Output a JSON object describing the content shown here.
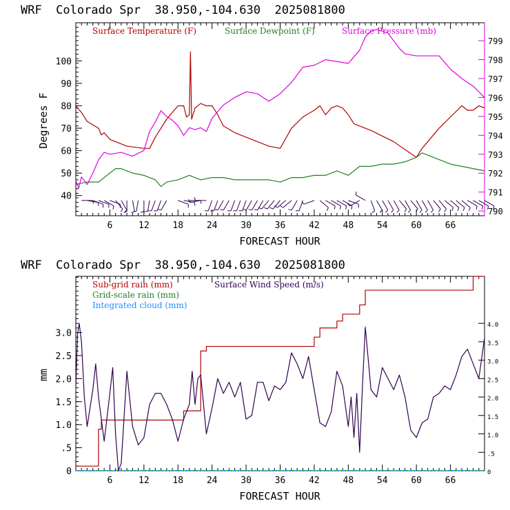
{
  "chart_data": [
    {
      "type": "line",
      "title": "WRF  Colorado Spr  38.950,-104.630  2025081800",
      "xlabel": "FORECAST HOUR",
      "ylabel": "Degrees F",
      "xlim": [
        0,
        72
      ],
      "ylim": [
        31,
        117
      ],
      "y2lim": [
        789.75,
        799.95
      ],
      "xticks": [
        6,
        12,
        18,
        24,
        30,
        36,
        42,
        48,
        54,
        60,
        66
      ],
      "yticks": [
        40,
        50,
        60,
        70,
        80,
        90,
        100
      ],
      "y2ticks": [
        790,
        791,
        792,
        793,
        794,
        795,
        796,
        797,
        798,
        799
      ],
      "series": [
        {
          "name": "Surface Temperature (F)",
          "color": "#b00000",
          "axis": "left",
          "x": [
            0,
            1,
            2,
            4,
            4.5,
            5,
            6,
            9,
            12,
            13,
            14,
            16,
            18,
            19,
            19.5,
            20,
            20.2,
            20.4,
            21,
            22,
            23,
            24,
            25,
            26,
            28,
            30,
            32,
            34,
            36,
            38,
            40,
            42,
            43,
            44,
            45,
            46,
            47,
            48,
            49,
            50,
            52,
            56,
            60,
            61,
            62,
            64,
            66,
            68,
            69,
            70,
            71,
            72
          ],
          "values": [
            80,
            77,
            73,
            70,
            67,
            68,
            65,
            62,
            61,
            61,
            66,
            74,
            80,
            80,
            75,
            76,
            104,
            74,
            79,
            81,
            80,
            80,
            76,
            71,
            68,
            66,
            64,
            62,
            61,
            70,
            75,
            78,
            80,
            76,
            79,
            80,
            79,
            76,
            72,
            71,
            69,
            64,
            57,
            61,
            64,
            70,
            75,
            80,
            78,
            78,
            80,
            79
          ]
        },
        {
          "name": "Surface Dewpoint (F)",
          "color": "#208020",
          "axis": "left",
          "x": [
            0,
            2,
            4,
            6,
            7,
            8,
            10,
            12,
            14,
            15,
            16,
            18,
            20,
            22,
            24,
            26,
            28,
            30,
            32,
            34,
            36,
            38,
            40,
            42,
            44,
            46,
            48,
            50,
            52,
            54,
            56,
            58,
            60,
            61,
            62,
            64,
            66,
            68,
            70,
            72
          ],
          "values": [
            45,
            46,
            46,
            50,
            52,
            52,
            50,
            49,
            47,
            44,
            46,
            47,
            49,
            47,
            48,
            48,
            47,
            47,
            47,
            47,
            46,
            48,
            48,
            49,
            49,
            51,
            49,
            53,
            53,
            54,
            54,
            55,
            57,
            59,
            58,
            56,
            54,
            53,
            52,
            51
          ]
        },
        {
          "name": "Surface Pressure (mb)",
          "color": "#dd00dd",
          "axis": "right",
          "x": [
            0,
            0.5,
            1,
            2,
            3,
            4,
            5,
            6,
            8,
            10,
            12,
            13,
            14,
            15,
            16,
            17,
            18,
            19,
            20,
            21,
            22,
            23,
            24,
            26,
            28,
            30,
            32,
            34,
            36,
            38,
            40,
            42,
            44,
            46,
            48,
            50,
            51,
            52,
            53,
            55,
            57,
            58,
            60,
            62,
            64,
            66,
            68,
            70,
            72
          ],
          "values": [
            791.6,
            791.2,
            791.8,
            791.4,
            792.0,
            792.7,
            793.1,
            793.0,
            793.1,
            792.9,
            793.2,
            794.2,
            794.7,
            795.3,
            795.0,
            794.8,
            794.5,
            794.0,
            794.4,
            794.3,
            794.4,
            794.2,
            794.9,
            795.6,
            796.0,
            796.3,
            796.2,
            795.8,
            796.2,
            796.8,
            797.6,
            797.7,
            798.0,
            797.9,
            797.8,
            798.5,
            799.2,
            799.5,
            799.6,
            799.4,
            798.6,
            798.3,
            798.2,
            798.2,
            798.2,
            797.5,
            797.0,
            796.6,
            796.0
          ]
        }
      ],
      "wind_barbs": {
        "hours": [
          1,
          2,
          3,
          4,
          5,
          6,
          7,
          8,
          9,
          10,
          11,
          12,
          13,
          14,
          15,
          16,
          18,
          19,
          20,
          22,
          23,
          24,
          25,
          26,
          27,
          28,
          29,
          30,
          31,
          32,
          33,
          34,
          35,
          36,
          37,
          38,
          39,
          40,
          42,
          43,
          44,
          45,
          46,
          47,
          48,
          50,
          51,
          52,
          53,
          54,
          55,
          56,
          57,
          58,
          59,
          60,
          61,
          62,
          63,
          64,
          65,
          66,
          67,
          68,
          69,
          70,
          71,
          72
        ],
        "angles": [
          90,
          100,
          110,
          110,
          120,
          110,
          140,
          150,
          180,
          170,
          190,
          180,
          190,
          200,
          200,
          210,
          110,
          100,
          90,
          260,
          270,
          200,
          200,
          210,
          210,
          200,
          200,
          200,
          210,
          210,
          210,
          220,
          220,
          220,
          230,
          230,
          210,
          200,
          250,
          130,
          120,
          120,
          120,
          120,
          110,
          240,
          300,
          160,
          150,
          150,
          150,
          150,
          140,
          150,
          140,
          150,
          150,
          150,
          140,
          140,
          130,
          130,
          130,
          130,
          120,
          120,
          120,
          120
        ]
      }
    },
    {
      "type": "line",
      "title": "WRF  Colorado Spr  38.950,-104.630  2025081800",
      "xlabel": "FORECAST HOUR",
      "ylabel": "mm",
      "xlim": [
        0,
        72
      ],
      "ylim": [
        0,
        4.22
      ],
      "y2lim": [
        0,
        5.275
      ],
      "xticks": [
        6,
        12,
        18,
        24,
        30,
        36,
        42,
        48,
        54,
        60,
        66
      ],
      "yticks": [
        0,
        0.5,
        1.0,
        1.5,
        2.0,
        2.5,
        3.0
      ],
      "ytick_labels": [
        "0",
        ".5",
        "1.0",
        "1.5",
        "2.0",
        "2.5",
        "3.0"
      ],
      "y2ticks": [
        0,
        0.5,
        1.0,
        1.5,
        2.0,
        2.5,
        3.0,
        3.5,
        4.0
      ],
      "y2tick_labels": [
        "0",
        ".5",
        "1.0",
        "1.5",
        "2.0",
        "2.5",
        "3.0",
        "3.5",
        "4.0"
      ],
      "series": [
        {
          "name": "Sub-grid rain (mm)",
          "color": "#b00000",
          "axis": "left",
          "x": [
            0,
            4,
            4,
            4.5,
            4.5,
            19,
            19,
            22,
            22,
            23,
            23,
            42,
            42,
            43,
            43,
            46,
            46,
            47,
            47,
            50,
            50,
            51,
            51,
            70,
            70,
            72
          ],
          "values": [
            0.1,
            0.1,
            0.9,
            0.9,
            1.1,
            1.1,
            1.3,
            1.3,
            2.6,
            2.6,
            2.7,
            2.7,
            2.9,
            2.9,
            3.1,
            3.1,
            3.25,
            3.25,
            3.4,
            3.4,
            3.6,
            3.6,
            3.92,
            3.92,
            4.35,
            4.35
          ]
        },
        {
          "name": "Grid-scale rain (mm)",
          "color": "#208020",
          "axis": "left",
          "x": [
            0,
            72
          ],
          "values": [
            0,
            0
          ]
        },
        {
          "name": "Integrated cloud (mm)",
          "color": "#1e90ff",
          "axis": "left",
          "x": [
            0,
            72
          ],
          "values": [
            0,
            0
          ]
        },
        {
          "name": "Surface Wind Speed (m/s)",
          "color": "#300050",
          "axis": "right",
          "x": [
            0,
            0.3,
            0.6,
            1,
            1.5,
            2,
            3,
            3.5,
            4,
            5,
            6,
            6.5,
            7,
            7.5,
            8,
            9,
            10,
            11,
            12,
            13,
            14,
            15,
            16,
            17,
            18,
            19,
            20,
            20.5,
            21,
            21.5,
            22,
            23,
            24,
            25,
            26,
            27,
            28,
            29,
            30,
            31,
            32,
            33,
            34,
            35,
            36,
            37,
            38,
            39,
            40,
            41,
            42,
            43,
            44,
            45,
            46,
            47,
            48,
            48.5,
            49,
            49.5,
            50,
            50.5,
            51,
            52,
            53,
            54,
            55,
            56,
            57,
            58,
            59,
            60,
            61,
            62,
            63,
            64,
            65,
            66,
            67,
            68,
            69,
            70,
            71,
            72
          ],
          "values": [
            2.3,
            3.7,
            4.0,
            3.5,
            2.0,
            1.2,
            2.2,
            2.9,
            2.0,
            0.8,
            2.1,
            2.8,
            1.0,
            0.0,
            0.2,
            2.7,
            1.2,
            0.7,
            0.9,
            1.8,
            2.1,
            2.1,
            1.8,
            1.4,
            0.8,
            1.4,
            1.8,
            2.7,
            1.8,
            2.5,
            2.6,
            1.0,
            1.7,
            2.5,
            2.1,
            2.4,
            2.0,
            2.4,
            1.4,
            1.5,
            2.4,
            2.4,
            1.9,
            2.3,
            2.2,
            2.4,
            3.2,
            2.9,
            2.5,
            3.1,
            2.2,
            1.3,
            1.2,
            1.6,
            2.7,
            2.3,
            1.2,
            2.0,
            0.9,
            2.1,
            0.5,
            2.3,
            3.9,
            2.2,
            2.0,
            2.8,
            2.5,
            2.2,
            2.6,
            2.0,
            1.1,
            0.9,
            1.3,
            1.4,
            2.0,
            2.1,
            2.3,
            2.2,
            2.6,
            3.1,
            3.3,
            2.9,
            2.5,
            3.6
          ]
        }
      ]
    }
  ]
}
